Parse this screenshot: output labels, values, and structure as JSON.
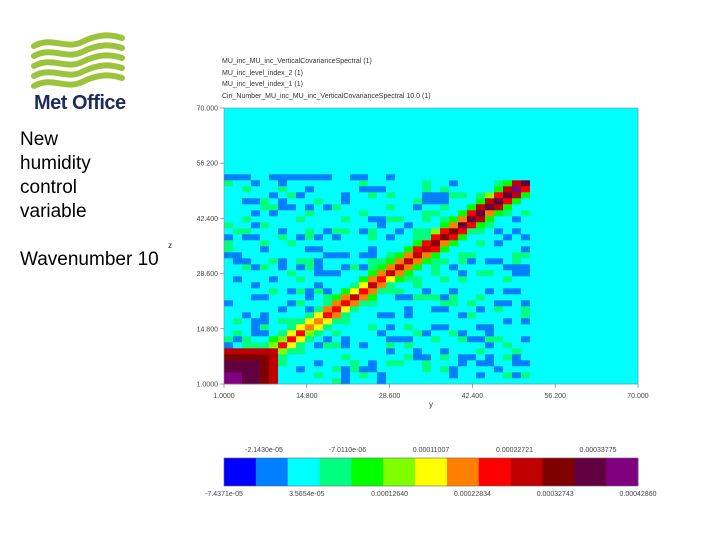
{
  "logo": {
    "text": "Met Office",
    "color": "#1f2d5c",
    "wave_color": "#9cc33c"
  },
  "side": {
    "title": "New humidity control variable",
    "wavenumber": "Wavenumber 10"
  },
  "plot_header": [
    "MU_inc_MU_inc_VerticalCovarianceSpectral (1)",
    "MU_inc_level_index_2 (1)",
    "MU_inc_level_index_1 (1)",
    "Cin_Number_MU_inc_MU_inc_VerticalCovarianceSpectral 10.0 (1)"
  ],
  "chart_data": {
    "type": "heatmap",
    "title": "",
    "xlabel": "y",
    "ylabel": "z",
    "xlim": [
      1.0,
      70.0
    ],
    "ylim": [
      1.0,
      70.0
    ],
    "x_ticks": [
      "1.0000",
      "14.800",
      "28.600",
      "42.400",
      "56.200",
      "70.000"
    ],
    "y_ticks": [
      "1.0000",
      "14.800",
      "28.600",
      "42.400",
      "56.200",
      "70.000"
    ],
    "description_features": {
      "diagonal_from": 1.0,
      "diagonal_to": 52.0,
      "active_region_max": 52.0
    },
    "colorbar": {
      "colors": [
        "#0000ff",
        "#0080ff",
        "#00ffff",
        "#00ff80",
        "#00ff00",
        "#80ff00",
        "#ffff00",
        "#ff8000",
        "#ff0000",
        "#c00000",
        "#800000",
        "#600040",
        "#800080"
      ],
      "top_labels": [
        "-2.1430e-05",
        "-7.0110e-06",
        "0.00011007",
        "0.00022721",
        "0.00033775"
      ],
      "bottom_labels": [
        "-7.4371e-05",
        "3.5654e-05",
        "0.00012640",
        "0.00022834",
        "0.00032743",
        "0.00042860"
      ]
    }
  }
}
